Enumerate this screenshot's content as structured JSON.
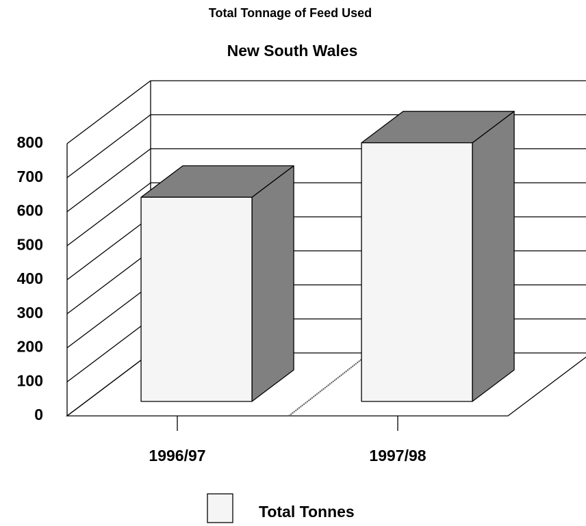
{
  "chart_data": {
    "type": "bar3d",
    "title": "Total Tonnage of Feed Used",
    "subtitle": "New South Wales",
    "categories": [
      "1996/97",
      "1997/98"
    ],
    "series": [
      {
        "name": "Total Tonnes",
        "color": "#f5f5f5",
        "shade": "#808080",
        "values": [
          600,
          760
        ]
      }
    ],
    "ylim": [
      0,
      800
    ],
    "yticks": [
      0,
      100,
      200,
      300,
      400,
      500,
      600,
      700,
      800
    ],
    "grid": true,
    "legend": "bottom"
  }
}
